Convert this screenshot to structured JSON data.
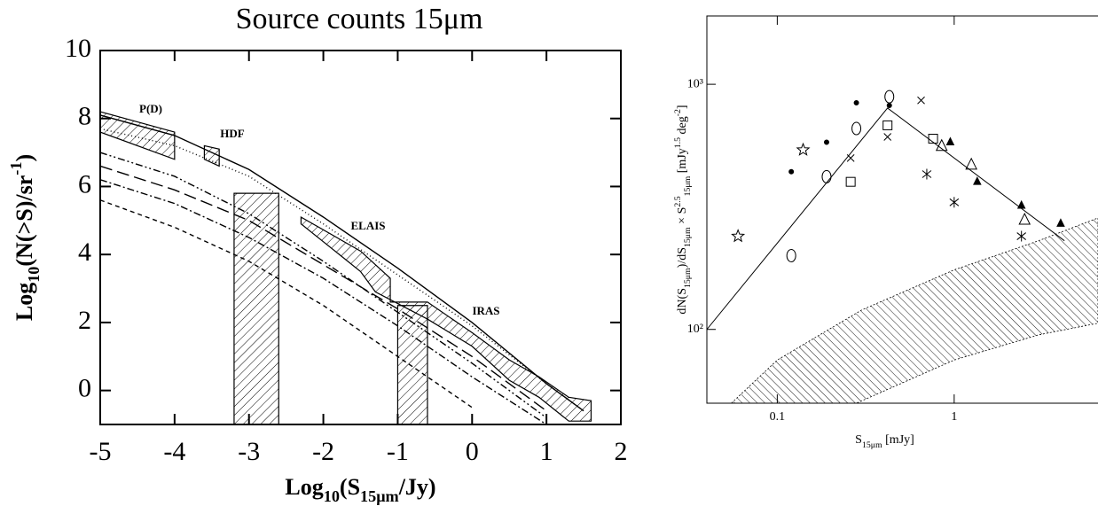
{
  "chart_data": [
    {
      "type": "line",
      "title": "Source counts 15μm",
      "x_label_parts": [
        {
          "text": "Log"
        },
        {
          "text": "10",
          "shift": "sub"
        },
        {
          "text": "(S"
        },
        {
          "text": "15μm",
          "shift": "sub"
        },
        {
          "text": "/Jy)"
        }
      ],
      "y_label_parts": [
        {
          "text": "Log"
        },
        {
          "text": "10",
          "shift": "sub"
        },
        {
          "text": "(N(>S)/sr"
        },
        {
          "text": "-1",
          "shift": "super"
        },
        {
          "text": ")"
        }
      ],
      "xlim": [
        -5,
        2
      ],
      "ylim": [
        -1,
        10
      ],
      "xticks": [
        -5,
        -4,
        -3,
        -2,
        -1,
        0,
        1,
        2
      ],
      "yticks": [
        0,
        2,
        4,
        6,
        8,
        10
      ],
      "annotations": [
        "P(D)",
        "HDF",
        "ELAIS",
        "IRAS"
      ],
      "x": [
        -5,
        -4,
        -3,
        -2,
        -1,
        0,
        1,
        1.5
      ],
      "series": [
        {
          "dash": "none",
          "values": [
            8.1,
            7.5,
            6.5,
            5.1,
            3.6,
            2.0,
            0.2,
            -0.6
          ]
        },
        {
          "dash": "1,3",
          "values": [
            7.7,
            7.2,
            6.3,
            4.9,
            3.4,
            1.9,
            0.2,
            -0.6
          ]
        },
        {
          "dash": "8,3,2,3,2,3",
          "values": [
            7.0,
            6.3,
            5.2,
            3.8,
            2.3,
            0.8,
            -0.8,
            null
          ]
        },
        {
          "dash": "14,6",
          "values": [
            6.6,
            5.9,
            5.0,
            3.7,
            2.4,
            1.0,
            -0.6,
            null
          ]
        },
        {
          "dash": "8,3,2,3",
          "values": [
            6.2,
            5.5,
            4.5,
            3.3,
            1.9,
            0.4,
            -1.0,
            null
          ]
        },
        {
          "dash": "5,4",
          "values": [
            5.6,
            4.8,
            3.8,
            2.5,
            1.0,
            -0.5,
            null,
            null
          ]
        }
      ],
      "hatched_regions": [
        [
          [
            -5,
            8.2
          ],
          [
            -4,
            7.6
          ],
          [
            -4,
            6.8
          ],
          [
            -5,
            7.6
          ]
        ],
        [
          [
            -3.6,
            7.2
          ],
          [
            -3.4,
            7.1
          ],
          [
            -3.4,
            6.6
          ],
          [
            -3.6,
            6.8
          ]
        ],
        [
          [
            -3.2,
            -1
          ],
          [
            -3.2,
            5.8
          ],
          [
            -2.6,
            5.8
          ],
          [
            -2.6,
            -1
          ]
        ],
        [
          [
            -1,
            -1
          ],
          [
            -1,
            2.5
          ],
          [
            -0.6,
            2.5
          ],
          [
            -0.6,
            -1
          ]
        ],
        [
          [
            -2.3,
            5.1
          ],
          [
            -1.5,
            4.1
          ],
          [
            -1.1,
            3.3
          ],
          [
            -1.1,
            2.6
          ],
          [
            -0.6,
            2.6
          ],
          [
            0,
            1.7
          ],
          [
            0.5,
            0.9
          ],
          [
            0.9,
            0.4
          ],
          [
            1.3,
            -0.2
          ],
          [
            1.6,
            -0.3
          ],
          [
            1.6,
            -0.9
          ],
          [
            1.3,
            -0.9
          ],
          [
            0.9,
            -0.2
          ],
          [
            0.5,
            0.3
          ],
          [
            0,
            1.3
          ],
          [
            -0.6,
            2.1
          ],
          [
            -1.3,
            2.9
          ],
          [
            -1.5,
            3.5
          ],
          [
            -2.3,
            4.9
          ]
        ]
      ]
    },
    {
      "type": "scatter",
      "log_x": true,
      "log_y": true,
      "x_label_parts": [
        {
          "text": "S"
        },
        {
          "text": "15μm",
          "shift": "sub"
        },
        {
          "text": " [mJy]"
        }
      ],
      "y_label_parts": [
        {
          "text": "dN(S"
        },
        {
          "text": "15μm",
          "shift": "sub"
        },
        {
          "text": ")/dS"
        },
        {
          "text": "15μm",
          "shift": "sub"
        },
        {
          "text": " × S"
        },
        {
          "text": "2.5",
          "shift": "super"
        },
        {
          "text": "15μm",
          "shift": "sub"
        },
        {
          "text": " [mJy"
        },
        {
          "text": "1.5",
          "shift": "super"
        },
        {
          "text": " deg"
        },
        {
          "text": "-2",
          "shift": "super"
        },
        {
          "text": "]"
        }
      ],
      "xlim": [
        0.04,
        6.5
      ],
      "ylim": [
        50,
        1900
      ],
      "xticks": [
        0.1,
        1
      ],
      "yticks": [
        {
          "value": 100,
          "label": "10²"
        },
        {
          "value": 1000,
          "label": "10³"
        }
      ],
      "series": [
        {
          "symbol": "star",
          "x": [
            0.06,
            0.14
          ],
          "values": [
            240,
            540
          ]
        },
        {
          "symbol": "circle",
          "x": [
            0.12,
            0.19,
            0.28,
            0.43
          ],
          "values": [
            200,
            420,
            660,
            890
          ]
        },
        {
          "symbol": "dot",
          "x": [
            0.12,
            0.19,
            0.28,
            0.43
          ],
          "values": [
            440,
            580,
            840,
            820
          ]
        },
        {
          "symbol": "square",
          "x": [
            0.26,
            0.42,
            0.76
          ],
          "values": [
            400,
            680,
            600
          ]
        },
        {
          "symbol": "triangle",
          "x": [
            0.85,
            1.25,
            2.5
          ],
          "values": [
            560,
            470,
            280
          ]
        },
        {
          "symbol": "filled-triangle",
          "x": [
            0.95,
            1.35,
            2.4,
            4.0
          ],
          "values": [
            580,
            400,
            320,
            270
          ]
        },
        {
          "symbol": "cross",
          "x": [
            0.26,
            0.42,
            0.65
          ],
          "values": [
            500,
            610,
            860
          ]
        },
        {
          "symbol": "asterisk",
          "x": [
            0.7,
            1.0,
            2.4
          ],
          "values": [
            430,
            330,
            240
          ]
        }
      ],
      "model": {
        "x": [
          0.04,
          0.42,
          4.2
        ],
        "values": [
          100,
          800,
          230
        ]
      },
      "band_upper": {
        "x": [
          0.055,
          0.1,
          0.3,
          1,
          3,
          6.5
        ],
        "values": [
          50,
          75,
          120,
          175,
          230,
          285
        ]
      },
      "band_lower": {
        "x": [
          0.28,
          1,
          3,
          6.5
        ],
        "values": [
          50,
          75,
          95,
          106
        ]
      }
    }
  ]
}
